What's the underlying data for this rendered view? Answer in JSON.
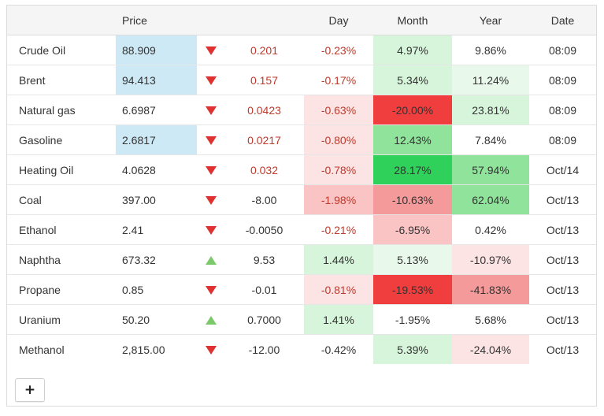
{
  "headers": {
    "name": "",
    "price": "Price",
    "arrow": "",
    "change": "",
    "day": "Day",
    "month": "Month",
    "year": "Year",
    "date": "Date"
  },
  "colors": {
    "price_highlight": "#cde9f6",
    "green_light": "#e8f8ea",
    "green_mid": "#d6f5da",
    "green_strong": "#8fe39a",
    "green_max": "#2fd15a",
    "red_light": "#fde4e4",
    "red_mid": "#fbc4c4",
    "red_strong": "#f59a9a",
    "red_max": "#f03e3e",
    "arrow_down": "#e03131",
    "arrow_up": "#7cc96b"
  },
  "rows": [
    {
      "name": "Crude Oil",
      "price": "88.909",
      "dir": "down",
      "change": "0.201",
      "day": "-0.23%",
      "month": "4.97%",
      "year": "9.86%",
      "date": "08:09"
    },
    {
      "name": "Brent",
      "price": "94.413",
      "dir": "down",
      "change": "0.157",
      "day": "-0.17%",
      "month": "5.34%",
      "year": "11.24%",
      "date": "08:09"
    },
    {
      "name": "Natural gas",
      "price": "6.6987",
      "dir": "down",
      "change": "0.0423",
      "day": "-0.63%",
      "month": "-20.00%",
      "year": "23.81%",
      "date": "08:09"
    },
    {
      "name": "Gasoline",
      "price": "2.6817",
      "dir": "down",
      "change": "0.0217",
      "day": "-0.80%",
      "month": "12.43%",
      "year": "7.84%",
      "date": "08:09"
    },
    {
      "name": "Heating Oil",
      "price": "4.0628",
      "dir": "down",
      "change": "0.032",
      "day": "-0.78%",
      "month": "28.17%",
      "year": "57.94%",
      "date": "Oct/14"
    },
    {
      "name": "Coal",
      "price": "397.00",
      "dir": "down",
      "change": "-8.00",
      "day": "-1.98%",
      "month": "-10.63%",
      "year": "62.04%",
      "date": "Oct/13"
    },
    {
      "name": "Ethanol",
      "price": "2.41",
      "dir": "down",
      "change": "-0.0050",
      "day": "-0.21%",
      "month": "-6.95%",
      "year": "0.42%",
      "date": "Oct/13"
    },
    {
      "name": "Naphtha",
      "price": "673.32",
      "dir": "up",
      "change": "9.53",
      "day": "1.44%",
      "month": "5.13%",
      "year": "-10.97%",
      "date": "Oct/13"
    },
    {
      "name": "Propane",
      "price": "0.85",
      "dir": "down",
      "change": "-0.01",
      "day": "-0.81%",
      "month": "-19.53%",
      "year": "-41.83%",
      "date": "Oct/13"
    },
    {
      "name": "Uranium",
      "price": "50.20",
      "dir": "up",
      "change": "0.7000",
      "day": "1.41%",
      "month": "-1.95%",
      "year": "5.68%",
      "date": "Oct/13"
    },
    {
      "name": "Methanol",
      "price": "2,815.00",
      "dir": "down",
      "change": "-12.00",
      "day": "-0.42%",
      "month": "5.39%",
      "year": "-24.04%",
      "date": "Oct/13"
    }
  ],
  "add_button_label": "+"
}
